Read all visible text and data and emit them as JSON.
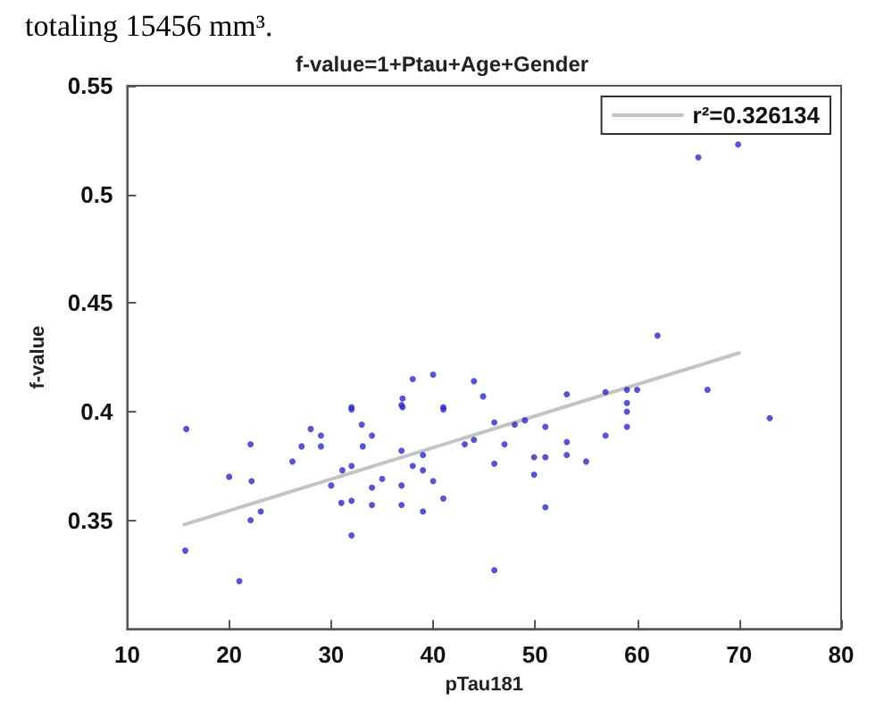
{
  "chart_data": {
    "type": "scatter",
    "title": "f-value=1+Ptau+Age+Gender",
    "xlabel": "pTau181",
    "ylabel": "f-value",
    "annotations": [
      "totaling 15456 mm³."
    ],
    "xlim": [
      10,
      80
    ],
    "xticks": [
      10,
      20,
      30,
      40,
      50,
      60,
      70,
      80
    ],
    "ylim": [
      0.3,
      0.55
    ],
    "yticks": [
      0.35,
      0.4,
      0.45,
      0.5,
      0.55
    ],
    "grid": false,
    "legend": "top right",
    "marker": "circle",
    "series": [
      {
        "color": "#2b2bc8",
        "x": [
          15.8,
          20.0,
          22.1,
          22.2,
          23.1,
          22.1,
          15.7,
          21.0,
          26.2,
          27.1,
          28.0,
          29.0,
          29.0,
          32.0,
          33.0,
          34.0,
          33.1,
          31.1,
          32.0,
          30.0,
          31.0,
          32.0,
          34.0,
          35.0,
          34.0,
          32.0,
          36.9,
          36.9,
          36.9,
          36.9,
          38.0,
          39.0,
          39.0,
          39.0,
          40.0,
          41.0,
          41.0,
          43.1,
          44.0,
          32.0,
          37.0,
          37.0,
          38.0,
          40.0,
          41.0,
          44.0,
          44.9,
          53.1,
          56.9,
          59.0,
          59.0,
          59.0,
          60.0,
          62.0,
          66.0,
          69.9,
          66.9,
          73.0,
          46.0,
          48.0,
          49.0,
          51.0,
          53.1,
          47.0,
          46.0,
          49.9,
          51.0,
          53.1,
          49.9,
          55.0,
          56.9,
          59.0,
          51.0,
          46.0
        ],
        "values": [
          0.392,
          0.37,
          0.385,
          0.368,
          0.354,
          0.35,
          0.336,
          0.322,
          0.377,
          0.384,
          0.392,
          0.389,
          0.384,
          0.401,
          0.394,
          0.389,
          0.384,
          0.373,
          0.375,
          0.366,
          0.358,
          0.359,
          0.365,
          0.369,
          0.357,
          0.343,
          0.403,
          0.382,
          0.366,
          0.357,
          0.375,
          0.38,
          0.373,
          0.354,
          0.368,
          0.36,
          0.401,
          0.385,
          0.387,
          0.402,
          0.406,
          0.402,
          0.415,
          0.417,
          0.402,
          0.414,
          0.407,
          0.408,
          0.409,
          0.41,
          0.404,
          0.4,
          0.41,
          0.435,
          0.517,
          0.523,
          0.41,
          0.397,
          0.395,
          0.394,
          0.396,
          0.393,
          0.386,
          0.385,
          0.376,
          0.379,
          0.379,
          0.38,
          0.371,
          0.377,
          0.389,
          0.393,
          0.356,
          0.327
        ]
      },
      {
        "type": "line",
        "name": "r²=0.326134",
        "color": "#c4c4c4",
        "marker": "none",
        "line_style": "solid",
        "x": [
          15.6,
          70.0
        ],
        "values": [
          0.348,
          0.427
        ]
      }
    ]
  }
}
